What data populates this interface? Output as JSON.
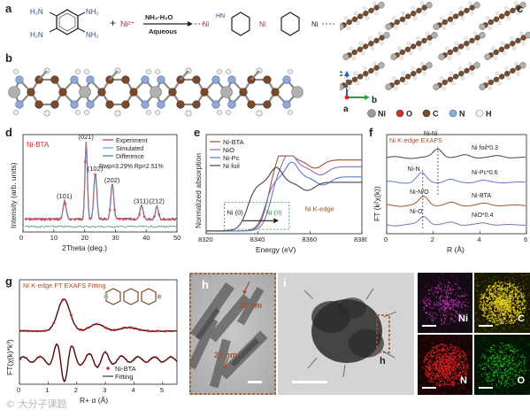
{
  "panels": {
    "a": {
      "label": "a",
      "reactant_groups": [
        "H₂N",
        "NH₂",
        "H₂N",
        "NH₂"
      ],
      "plus": "+",
      "ni_ion": "Ni²⁺",
      "reagent_top": "NH₃·H₂O",
      "reagent_bottom": "Aqueous",
      "product_ni": "Ni",
      "product_nh": "HN"
    },
    "b": {
      "label": "b"
    },
    "c": {
      "label": "c",
      "axes": {
        "c": "c",
        "a": "a",
        "b": "b"
      },
      "legend": [
        "Ni",
        "O",
        "C",
        "N",
        "H"
      ]
    },
    "d": {
      "label": "d"
    },
    "e": {
      "label": "e"
    },
    "f": {
      "label": "f"
    },
    "g": {
      "label": "g"
    },
    "h": {
      "label": "h",
      "scale_1": "32 nm",
      "scale_2": "27 nm"
    },
    "i": {
      "label": "i",
      "region_label": "h",
      "maps": [
        "Ni",
        "C",
        "N",
        "O"
      ]
    }
  },
  "colors": {
    "ni": "#9a9a9a",
    "o": "#c0392b",
    "c": "#7a4a2a",
    "n": "#8fa8d8",
    "h": "#f0f0f0",
    "experiment": "#d62728",
    "simulated": "#5b9bd5",
    "difference": "#2a8a7a",
    "bta": "#a0522d",
    "nio": "#8c6bb1",
    "nipc": "#5b7bd5",
    "nifoil": "#444444",
    "map_ni": "#c030b0",
    "map_c": "#e8d020",
    "map_n": "#e02020",
    "map_o": "#20b020"
  },
  "watermark": "© 大分子课题",
  "chart_data": [
    {
      "id": "d",
      "type": "line",
      "title": "Ni-BTA",
      "xlabel": "2Theta (deg.)",
      "ylabel": "Intensity (arb. units)",
      "xlim": [
        0,
        50
      ],
      "xticks": [
        0,
        10,
        20,
        30,
        40,
        50
      ],
      "legend": [
        "Experiment",
        "Simulated",
        "Difference"
      ],
      "legend_position": "top-right",
      "stats": "Rwp=3.29% Rp=2.51%",
      "peaks": [
        {
          "label": "(101)",
          "x": 13.5,
          "y": 0.22
        },
        {
          "label": "(021)",
          "x": 20.5,
          "y": 0.95
        },
        {
          "label": "(102)",
          "x": 23.5,
          "y": 0.56
        },
        {
          "label": "(202)",
          "x": 29.0,
          "y": 0.42
        },
        {
          "label": "(311)",
          "x": 38.5,
          "y": 0.16
        },
        {
          "label": "(212)",
          "x": 43.5,
          "y": 0.16
        }
      ]
    },
    {
      "id": "e",
      "type": "line",
      "xlabel": "Energy (eV)",
      "ylabel": "Normalized absorption",
      "xlim": [
        8320,
        8380
      ],
      "xticks": [
        8320,
        8340,
        8360,
        8380
      ],
      "legend": [
        "Ni-BTA",
        "NiO",
        "Ni-Pc",
        "Ni foil"
      ],
      "legend_position": "top-left",
      "annotation": "Ni K-edge",
      "edge_labels": [
        "Ni (0)",
        "Ni (II)"
      ]
    },
    {
      "id": "f",
      "type": "line",
      "title": "Ni K-edge EXAFS",
      "xlabel": "R (Å)",
      "ylabel": "FT (k²χ(k))",
      "xlim": [
        0,
        6
      ],
      "xticks": [
        0,
        2,
        4,
        6
      ],
      "series": [
        {
          "name": "Ni foil*0.3",
          "bond": "Ni-Ni"
        },
        {
          "name": "Ni-Pc*0.6",
          "bond": "Ni-N"
        },
        {
          "name": "Ni-BTA",
          "bond": "Ni-N/O"
        },
        {
          "name": "NiO*0.4",
          "bond": "Ni-O"
        }
      ]
    },
    {
      "id": "g",
      "type": "line",
      "title": "Ni K-edge FT EXAFS Fitting",
      "xlabel": "R+ α (Å)",
      "ylabel": "FT(χ(k)*k³)",
      "xlim": [
        0,
        5.5
      ],
      "xticks": [
        0,
        1,
        2,
        3,
        4,
        5
      ],
      "legend": [
        "Ni-BTA",
        "Fitting"
      ],
      "legend_position": "bottom-right"
    }
  ]
}
